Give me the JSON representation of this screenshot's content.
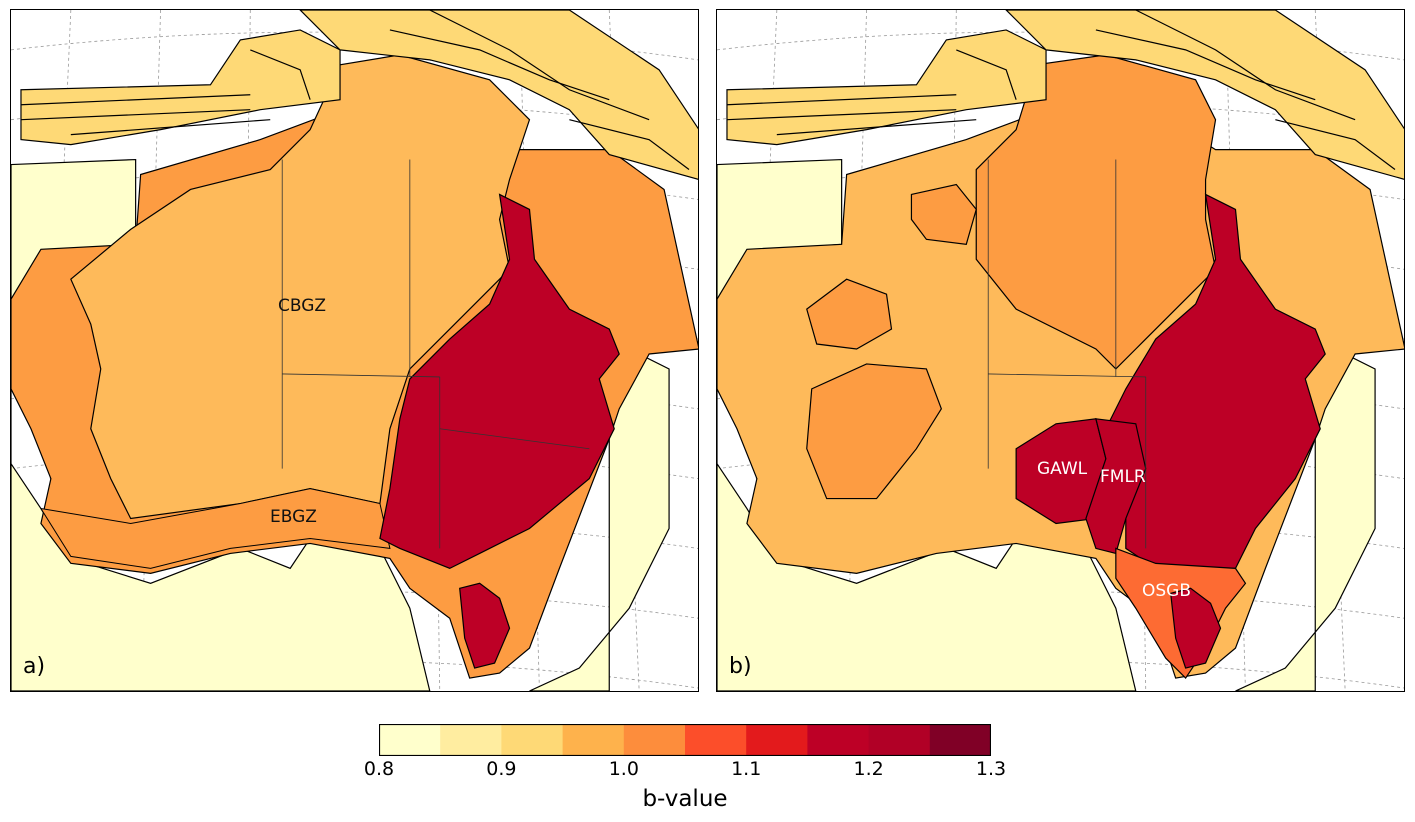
{
  "panels": [
    {
      "letter": "a)",
      "labels": [
        {
          "text": "CBGZ"
        },
        {
          "text": "EBGZ"
        }
      ]
    },
    {
      "letter": "b)",
      "labels": [
        {
          "text": "GAWL"
        },
        {
          "text": "FMLR"
        },
        {
          "text": "OSGB"
        }
      ]
    }
  ],
  "colorbar": {
    "label": "b-value",
    "min": 0.8,
    "max": 1.3,
    "ticks": [
      "0.8",
      "0.9",
      "1.0",
      "1.1",
      "1.2",
      "1.3"
    ],
    "colors": [
      "#ffffcc",
      "#ffeda0",
      "#fed976",
      "#feb24c",
      "#fd8d3c",
      "#fc4e2a",
      "#e31a1c",
      "#bd0026",
      "#b10026",
      "#800026"
    ]
  }
}
